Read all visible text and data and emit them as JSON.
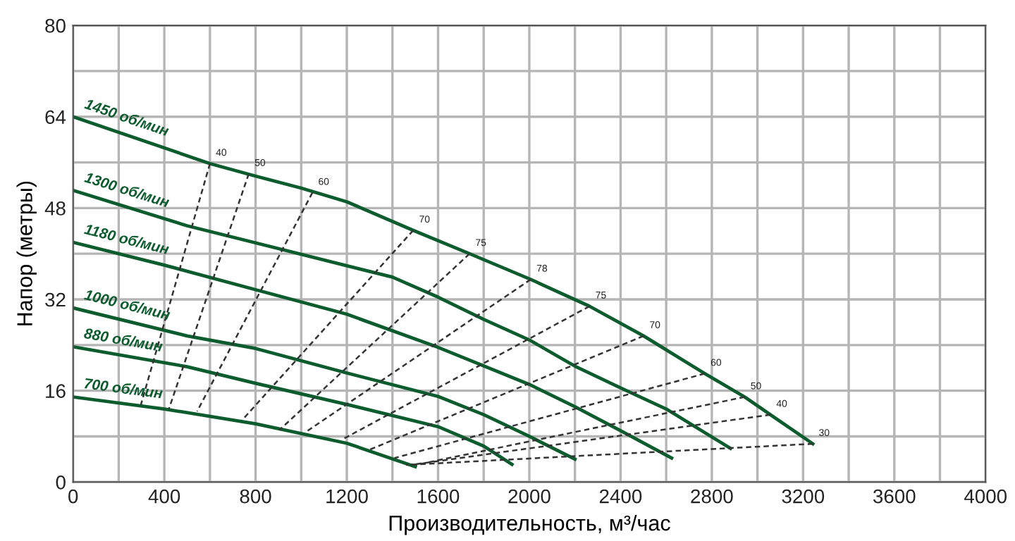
{
  "chart_data": {
    "type": "line",
    "xlabel": "Производительность, м³/час",
    "ylabel": "Напор (метры)",
    "xlim": [
      0,
      4000
    ],
    "ylim": [
      0,
      80
    ],
    "xticks": [
      0,
      {
        "value": 200,
        "label": null
      },
      400,
      {
        "value": 600,
        "label": null
      },
      800,
      {
        "value": 1000,
        "label": null
      },
      1200,
      {
        "value": 1400,
        "label": null
      },
      1600,
      {
        "value": 1800,
        "label": null
      },
      2000,
      {
        "value": 2200,
        "label": null
      },
      2400,
      {
        "value": 2600,
        "label": null
      },
      2800,
      {
        "value": 3000,
        "label": null
      },
      3200,
      {
        "value": 3400,
        "label": null
      },
      3600,
      {
        "value": 3800,
        "label": null
      },
      4000
    ],
    "yticks": [
      0,
      {
        "value": 8,
        "label": null
      },
      16,
      {
        "value": 24,
        "label": null
      },
      32,
      {
        "value": 40,
        "label": null
      },
      48,
      {
        "value": 56,
        "label": null
      },
      64,
      {
        "value": 72,
        "label": null
      },
      80
    ],
    "grid": true,
    "legend": false,
    "series": [
      {
        "name": "1450 об/мин",
        "color": "#0d5c2e",
        "line_style": "solid",
        "x": [
          0,
          600,
          800,
          1000,
          1200,
          1491,
          1738,
          2006,
          2264,
          2501,
          2769,
          2944,
          3057,
          3243
        ],
        "values": [
          64,
          55.8,
          53.6,
          51.5,
          49.1,
          44.1,
          40,
          35.5,
          30.8,
          25.6,
          19,
          14.9,
          11.8,
          6.7
        ]
      },
      {
        "name": "1300 об/мин",
        "color": "#0d5c2e",
        "line_style": "solid",
        "x": [
          0,
          500,
          800,
          1400,
          1600,
          1800,
          2000,
          2200,
          2400,
          2600,
          2882
        ],
        "values": [
          51.1,
          44.9,
          41.9,
          35.9,
          32.4,
          28.5,
          24.9,
          20.3,
          16.5,
          12.8,
          5.9
        ]
      },
      {
        "name": "1180 об/мин",
        "color": "#0d5c2e",
        "line_style": "solid",
        "x": [
          0,
          400,
          800,
          1200,
          1600,
          2000,
          2200,
          2400,
          2624
        ],
        "values": [
          42,
          38,
          33.7,
          29.4,
          23.6,
          17.1,
          13.2,
          9,
          4.2
        ]
      },
      {
        "name": "1000 об/мин",
        "color": "#0d5c2e",
        "line_style": "solid",
        "x": [
          0,
          500,
          800,
          1200,
          1600,
          1800,
          2000,
          2200
        ],
        "values": [
          30.5,
          25.6,
          23.4,
          19.1,
          15,
          11.8,
          8,
          4
        ]
      },
      {
        "name": "880 об/мин",
        "color": "#0d5c2e",
        "line_style": "solid",
        "x": [
          0,
          500,
          800,
          1200,
          1600,
          1800,
          1924
        ],
        "values": [
          23.7,
          20.2,
          17.3,
          13.6,
          9.7,
          6.3,
          3.1
        ]
      },
      {
        "name": "700 об/мин",
        "color": "#0d5c2e",
        "line_style": "solid",
        "x": [
          0,
          400,
          800,
          1200,
          1500
        ],
        "values": [
          14.9,
          12.8,
          10.2,
          6.8,
          2.7
        ]
      },
      {
        "name": "40",
        "color": "#333333",
        "line_style": "dashed",
        "x": [
          600,
          297
        ],
        "values": [
          55.8,
          13.5
        ]
      },
      {
        "name": "50",
        "color": "#333333",
        "line_style": "dashed",
        "x": [
          770,
          420
        ],
        "values": [
          54,
          12.8
        ]
      },
      {
        "name": "60",
        "color": "#333333",
        "line_style": "dashed",
        "x": [
          1049,
          544
        ],
        "values": [
          50.7,
          12.4
        ]
      },
      {
        "name": "70",
        "color": "#333333",
        "line_style": "dashed",
        "x": [
          1491,
          740
        ],
        "values": [
          44.1,
          10.8
        ]
      },
      {
        "name": "75",
        "color": "#333333",
        "line_style": "dashed",
        "x": [
          1738,
          904
        ],
        "values": [
          40,
          9.1
        ]
      },
      {
        "name": "78",
        "color": "#333333",
        "line_style": "dashed",
        "x": [
          2006,
          1018
        ],
        "values": [
          35.5,
          8.7
        ]
      },
      {
        "name": "75",
        "color": "#333333",
        "line_style": "dashed",
        "x": [
          2264,
          1182
        ],
        "values": [
          30.8,
          7.5
        ]
      },
      {
        "name": "70",
        "color": "#333333",
        "line_style": "dashed",
        "x": [
          2501,
          1296
        ],
        "values": [
          25.6,
          5.6
        ]
      },
      {
        "name": "60",
        "color": "#333333",
        "line_style": "dashed",
        "x": [
          2769,
          1409
        ],
        "values": [
          19,
          4.2
        ]
      },
      {
        "name": "50",
        "color": "#333333",
        "line_style": "dashed",
        "x": [
          2944,
          1502
        ],
        "values": [
          14.9,
          3
        ]
      },
      {
        "name": "40",
        "color": "#333333",
        "line_style": "dashed",
        "x": [
          3057,
          1480
        ],
        "values": [
          11.8,
          3
        ]
      },
      {
        "name": "30",
        "color": "#333333",
        "line_style": "dashed",
        "x": [
          3243,
          1460
        ],
        "values": [
          6.7,
          3
        ]
      }
    ]
  }
}
